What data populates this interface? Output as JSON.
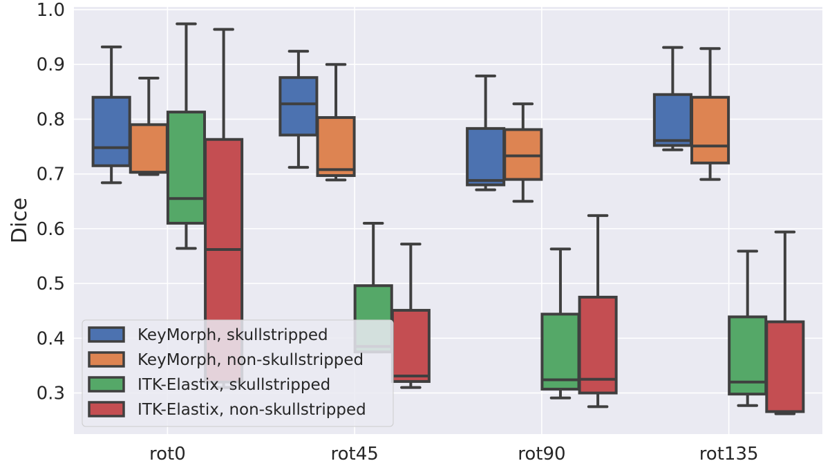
{
  "chart_data": {
    "type": "box",
    "title": "",
    "xlabel": "",
    "ylabel": "Dice",
    "ylim": [
      0.225,
      1.005
    ],
    "yticks": [
      "0.3",
      "0.4",
      "0.5",
      "0.6",
      "0.7",
      "0.8",
      "0.9",
      "1.0"
    ],
    "categories": [
      "rot0",
      "rot45",
      "rot90",
      "rot135"
    ],
    "grid": true,
    "legend_position": "lower-left",
    "series": [
      {
        "name": "KeyMorph, skullstripped",
        "color": "#4c72b0",
        "boxes": [
          {
            "whislo": 0.684,
            "q1": 0.715,
            "med": 0.748,
            "q3": 0.84,
            "whishi": 0.932
          },
          {
            "whislo": 0.712,
            "q1": 0.771,
            "med": 0.828,
            "q3": 0.876,
            "whishi": 0.924
          },
          {
            "whislo": 0.671,
            "q1": 0.68,
            "med": 0.688,
            "q3": 0.783,
            "whishi": 0.879
          },
          {
            "whislo": 0.744,
            "q1": 0.752,
            "med": 0.761,
            "q3": 0.845,
            "whishi": 0.931
          }
        ]
      },
      {
        "name": "KeyMorph, non-skullstripped",
        "color": "#dd8452",
        "boxes": [
          {
            "whislo": 0.699,
            "q1": 0.703,
            "med": 0.703,
            "q3": 0.79,
            "whishi": 0.875
          },
          {
            "whislo": 0.689,
            "q1": 0.697,
            "med": 0.708,
            "q3": 0.803,
            "whishi": 0.9
          },
          {
            "whislo": 0.65,
            "q1": 0.69,
            "med": 0.733,
            "q3": 0.781,
            "whishi": 0.828
          },
          {
            "whislo": 0.69,
            "q1": 0.72,
            "med": 0.751,
            "q3": 0.84,
            "whishi": 0.929
          }
        ]
      },
      {
        "name": "ITK-Elastix, skullstripped",
        "color": "#55a868",
        "boxes": [
          {
            "whislo": 0.564,
            "q1": 0.61,
            "med": 0.655,
            "q3": 0.813,
            "whishi": 0.974
          },
          {
            "whislo": 0.375,
            "q1": 0.375,
            "med": 0.385,
            "q3": 0.496,
            "whishi": 0.61
          },
          {
            "whislo": 0.291,
            "q1": 0.307,
            "med": 0.324,
            "q3": 0.444,
            "whishi": 0.563
          },
          {
            "whislo": 0.277,
            "q1": 0.298,
            "med": 0.32,
            "q3": 0.439,
            "whishi": 0.559
          }
        ]
      },
      {
        "name": "ITK-Elastix, non-skullstripped",
        "color": "#c44e52",
        "boxes": [
          {
            "whislo": 0.31,
            "q1": 0.32,
            "med": 0.562,
            "q3": 0.763,
            "whishi": 0.964
          },
          {
            "whislo": 0.31,
            "q1": 0.321,
            "med": 0.331,
            "q3": 0.451,
            "whishi": 0.572
          },
          {
            "whislo": 0.275,
            "q1": 0.3,
            "med": 0.325,
            "q3": 0.475,
            "whishi": 0.624
          },
          {
            "whislo": 0.262,
            "q1": 0.266,
            "med": 0.266,
            "q3": 0.43,
            "whishi": 0.594
          }
        ]
      }
    ]
  }
}
